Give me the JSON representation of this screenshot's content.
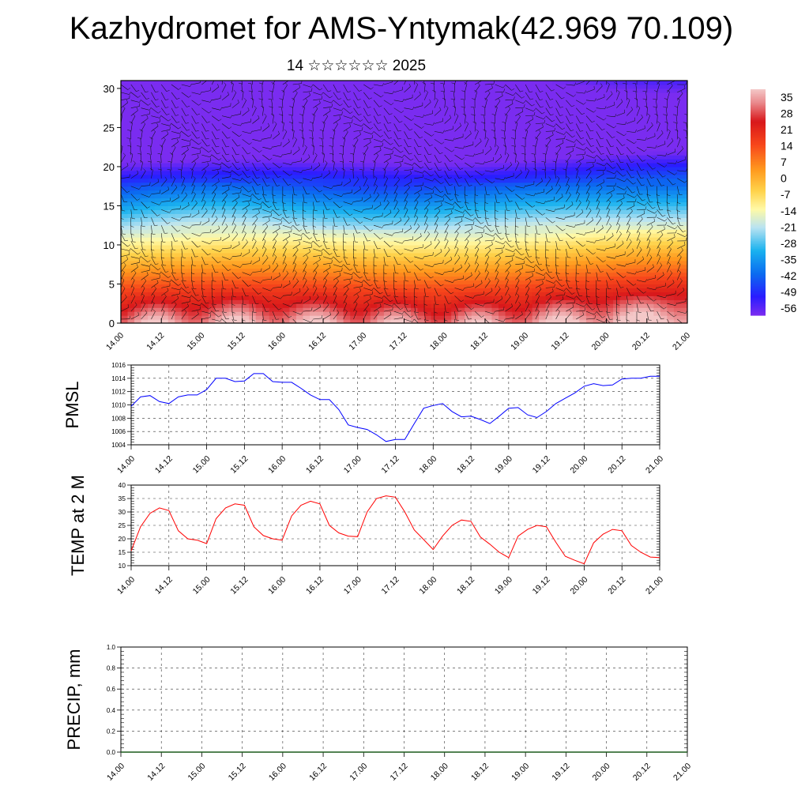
{
  "header": {
    "title": "Kazhydromet for AMS-Yntymak(42.969 70.109)",
    "subtitle": "14 ☆☆☆☆☆☆ 2025"
  },
  "chart_data": [
    {
      "type": "heatmap",
      "title": "Kazhydromet for AMS-Yntymak(42.969 70.109)",
      "subtitle": "14 ☆☆☆☆☆☆ 2025",
      "x_tick_labels": [
        "14.00",
        "14.12",
        "15.00",
        "15.12",
        "16.00",
        "16.12",
        "17.00",
        "17.12",
        "18.00",
        "18.12",
        "19.00",
        "19.12",
        "20.00",
        "20.12",
        "21.00"
      ],
      "xlim": [
        0,
        168
      ],
      "ylim": [
        0,
        31
      ],
      "y_ticks": [
        0,
        5,
        10,
        15,
        20,
        25,
        30
      ],
      "colorbar_labels": [
        "35",
        "28",
        "21",
        "14",
        "7",
        "0",
        "-7",
        "-14",
        "-21",
        "-28",
        "-35",
        "-42",
        "-49",
        "-56"
      ],
      "colorbar_range": [
        -60,
        38
      ],
      "overlay": "wind barbs",
      "color_stops": [
        {
          "v": -60,
          "c": "#7a2cf0"
        },
        {
          "v": -52,
          "c": "#2a1cff"
        },
        {
          "v": -42,
          "c": "#0b6cf0"
        },
        {
          "v": -32,
          "c": "#1ab2ef"
        },
        {
          "v": -22,
          "c": "#b9e3f1"
        },
        {
          "v": -14,
          "c": "#fff9a6"
        },
        {
          "v": -6,
          "c": "#ffd24a"
        },
        {
          "v": 3,
          "c": "#ff9a1e"
        },
        {
          "v": 14,
          "c": "#f7461b"
        },
        {
          "v": 24,
          "c": "#d8171b"
        },
        {
          "v": 32,
          "c": "#e9878a"
        },
        {
          "v": 38,
          "c": "#f4c8c8"
        }
      ]
    },
    {
      "type": "line",
      "ylabel": "PMSL",
      "x_tick_labels": [
        "14.00",
        "14.12",
        "15.00",
        "15.12",
        "16.00",
        "16.12",
        "17.00",
        "17.12",
        "18.00",
        "18.12",
        "19.00",
        "19.12",
        "20.00",
        "20.12",
        "21.00"
      ],
      "ylim": [
        1004,
        1016
      ],
      "y_ticks": [
        1004,
        1006,
        1008,
        1010,
        1012,
        1014,
        1016
      ],
      "line_color": "#0000ff",
      "x_hours": [
        0,
        3,
        6,
        9,
        12,
        15,
        18,
        21,
        24,
        27,
        30,
        33,
        36,
        39,
        42,
        45,
        48,
        51,
        54,
        57,
        60,
        63,
        66,
        69,
        72,
        75,
        78,
        81,
        84,
        87,
        90,
        93,
        96,
        99,
        102,
        105,
        108,
        111,
        114,
        117,
        120,
        123,
        126,
        129,
        132,
        135,
        138,
        141,
        144,
        147,
        150,
        153,
        156,
        159,
        162,
        165,
        168
      ],
      "values": [
        1009.8,
        1011.2,
        1011.4,
        1010.5,
        1010.2,
        1011.2,
        1011.5,
        1011.5,
        1012.3,
        1014.0,
        1014.0,
        1013.5,
        1013.6,
        1014.7,
        1014.7,
        1013.5,
        1013.4,
        1013.4,
        1012.5,
        1011.5,
        1010.8,
        1010.8,
        1009.3,
        1007.0,
        1006.6,
        1006.3,
        1005.5,
        1004.5,
        1004.8,
        1004.8,
        1007.2,
        1009.5,
        1009.9,
        1010.2,
        1009.0,
        1008.2,
        1008.3,
        1007.8,
        1007.2,
        1008.3,
        1009.5,
        1009.6,
        1008.5,
        1008.1,
        1009.0,
        1010.2,
        1011.0,
        1011.8,
        1012.8,
        1013.2,
        1012.9,
        1013.0,
        1013.9,
        1014.0,
        1014.0,
        1014.3,
        1014.3
      ]
    },
    {
      "type": "line",
      "ylabel": "TEMP at 2 M",
      "x_tick_labels": [
        "14.00",
        "14.12",
        "15.00",
        "15.12",
        "16.00",
        "16.12",
        "17.00",
        "17.12",
        "18.00",
        "18.12",
        "19.00",
        "19.12",
        "20.00",
        "20.12",
        "21.00"
      ],
      "ylim": [
        10,
        40
      ],
      "y_ticks": [
        10,
        15,
        20,
        25,
        30,
        35,
        40
      ],
      "line_color": "#ff0000",
      "x_hours": [
        0,
        3,
        6,
        9,
        12,
        15,
        18,
        21,
        24,
        27,
        30,
        33,
        36,
        39,
        42,
        45,
        48,
        51,
        54,
        57,
        60,
        63,
        66,
        69,
        72,
        75,
        78,
        81,
        84,
        87,
        90,
        93,
        96,
        99,
        102,
        105,
        108,
        111,
        114,
        117,
        120,
        123,
        126,
        129,
        132,
        135,
        138,
        141,
        144,
        147,
        150,
        153,
        156,
        159,
        162,
        165,
        168
      ],
      "values": [
        15.5,
        24.5,
        29.5,
        31.5,
        30.5,
        23,
        20,
        19.5,
        18.2,
        27.5,
        31.5,
        33,
        32.5,
        24.5,
        21.2,
        20,
        19.5,
        28.5,
        32.5,
        34,
        33,
        25,
        22.2,
        21,
        20.8,
        30,
        35,
        36,
        35.5,
        30,
        23.3,
        19.7,
        16,
        21,
        25,
        27,
        26.5,
        20.7,
        18,
        15,
        13,
        21,
        23.5,
        25,
        24.5,
        18.7,
        13.5,
        12,
        10.7,
        18.5,
        21.7,
        23.5,
        23,
        17.5,
        15,
        13.2,
        13
      ]
    },
    {
      "type": "bar",
      "ylabel": "PRECIP, mm",
      "x_tick_labels": [
        "14.00",
        "14.12",
        "15.00",
        "15.12",
        "16.00",
        "16.12",
        "17.00",
        "17.12",
        "18.00",
        "18.12",
        "19.00",
        "19.12",
        "20.00",
        "20.12",
        "21.00"
      ],
      "ylim": [
        0.0,
        1.0
      ],
      "y_tick_labels": [
        "0.0",
        "0.2",
        "0.4",
        "0.6",
        "0.8",
        "1.0"
      ],
      "values": [
        0
      ]
    }
  ]
}
